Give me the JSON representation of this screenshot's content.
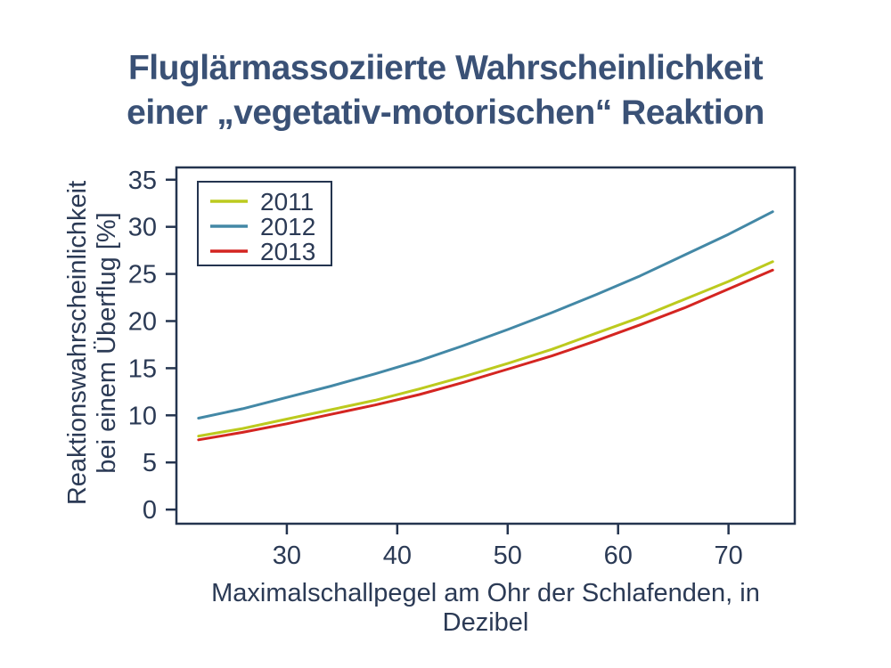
{
  "page": {
    "title_line1": "Fluglärmassoziierte Wahrscheinlichkeit",
    "title_line2": "einer „vegetativ-motorischen“ Reaktion"
  },
  "axes": {
    "ylabel_line1": "Reaktionswahrscheinlichkeit",
    "ylabel_line2": "bei einem Überflug [%]",
    "xlabel": "Maximalschallpegel am Ohr der Schlafenden, in Dezibel"
  },
  "colors": {
    "title": "#3a5176",
    "axis_text": "#2b3a55",
    "spine": "#24344f",
    "background": "#ffffff",
    "series_2011": "#bcca1e",
    "series_2012": "#4388a6",
    "series_2013": "#d42521"
  },
  "chart_data": {
    "type": "line",
    "title": "Fluglärmassoziierte Wahrscheinlichkeit einer „vegetativ-motorischen“ Reaktion",
    "xlabel": "Maximalschallpegel am Ohr der Schlafenden, in Dezibel",
    "ylabel": "Reaktionswahrscheinlichkeit bei einem Überflug [%]",
    "xlim": [
      20,
      76
    ],
    "ylim": [
      -1.5,
      36.3
    ],
    "xticks": [
      30,
      40,
      50,
      60,
      70
    ],
    "yticks": [
      0,
      5,
      10,
      15,
      20,
      25,
      30,
      35
    ],
    "grid": false,
    "legend_position": "upper left",
    "x": [
      22,
      26,
      30,
      34,
      38,
      42,
      46,
      50,
      54,
      58,
      62,
      66,
      70,
      74
    ],
    "series": [
      {
        "name": "2011",
        "color": "#bcca1e",
        "values": [
          7.8,
          8.6,
          9.6,
          10.6,
          11.6,
          12.8,
          14.1,
          15.5,
          17.0,
          18.7,
          20.4,
          22.3,
          24.2,
          26.3
        ]
      },
      {
        "name": "2012",
        "color": "#4388a6",
        "values": [
          9.7,
          10.7,
          11.9,
          13.1,
          14.4,
          15.8,
          17.4,
          19.1,
          20.9,
          22.8,
          24.8,
          27.0,
          29.2,
          31.6
        ]
      },
      {
        "name": "2013",
        "color": "#d42521",
        "values": [
          7.4,
          8.2,
          9.1,
          10.1,
          11.1,
          12.2,
          13.5,
          14.9,
          16.3,
          17.9,
          19.6,
          21.4,
          23.4,
          25.4
        ]
      }
    ]
  }
}
